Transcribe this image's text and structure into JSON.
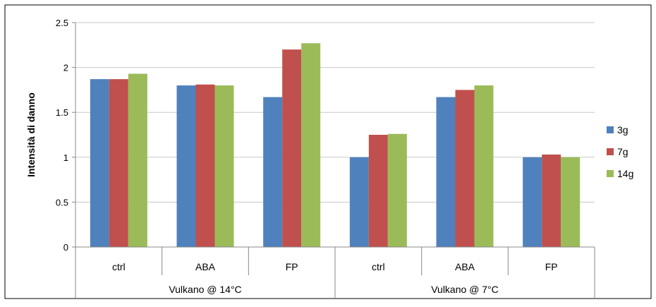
{
  "chart_data": {
    "type": "bar",
    "title": "",
    "xlabel": "",
    "ylabel": "Intensità di danno",
    "ylim": [
      0,
      2.5
    ],
    "yticks": [
      0,
      0.5,
      1,
      1.5,
      2,
      2.5
    ],
    "ytick_labels": [
      "0",
      "0.5",
      "1",
      "1.5",
      "2",
      "2.5"
    ],
    "grid": true,
    "legend_position": "right",
    "groups": [
      {
        "label": "Vulkano @ 14°C",
        "categories": [
          "ctrl",
          "ABA",
          "FP"
        ]
      },
      {
        "label": "Vulkano @ 7°C",
        "categories": [
          "ctrl",
          "ABA",
          "FP"
        ]
      }
    ],
    "categories": [
      "ctrl",
      "ABA",
      "FP",
      "ctrl",
      "ABA",
      "FP"
    ],
    "series": [
      {
        "name": "3g",
        "color": "#4F81BD",
        "values": [
          1.87,
          1.8,
          1.67,
          1.0,
          1.67,
          1.0
        ]
      },
      {
        "name": "7g",
        "color": "#C0504D",
        "values": [
          1.87,
          1.81,
          2.2,
          1.25,
          1.75,
          1.03
        ]
      },
      {
        "name": "14g",
        "color": "#9BBB59",
        "values": [
          1.93,
          1.8,
          2.27,
          1.26,
          1.8,
          1.0
        ]
      }
    ]
  }
}
